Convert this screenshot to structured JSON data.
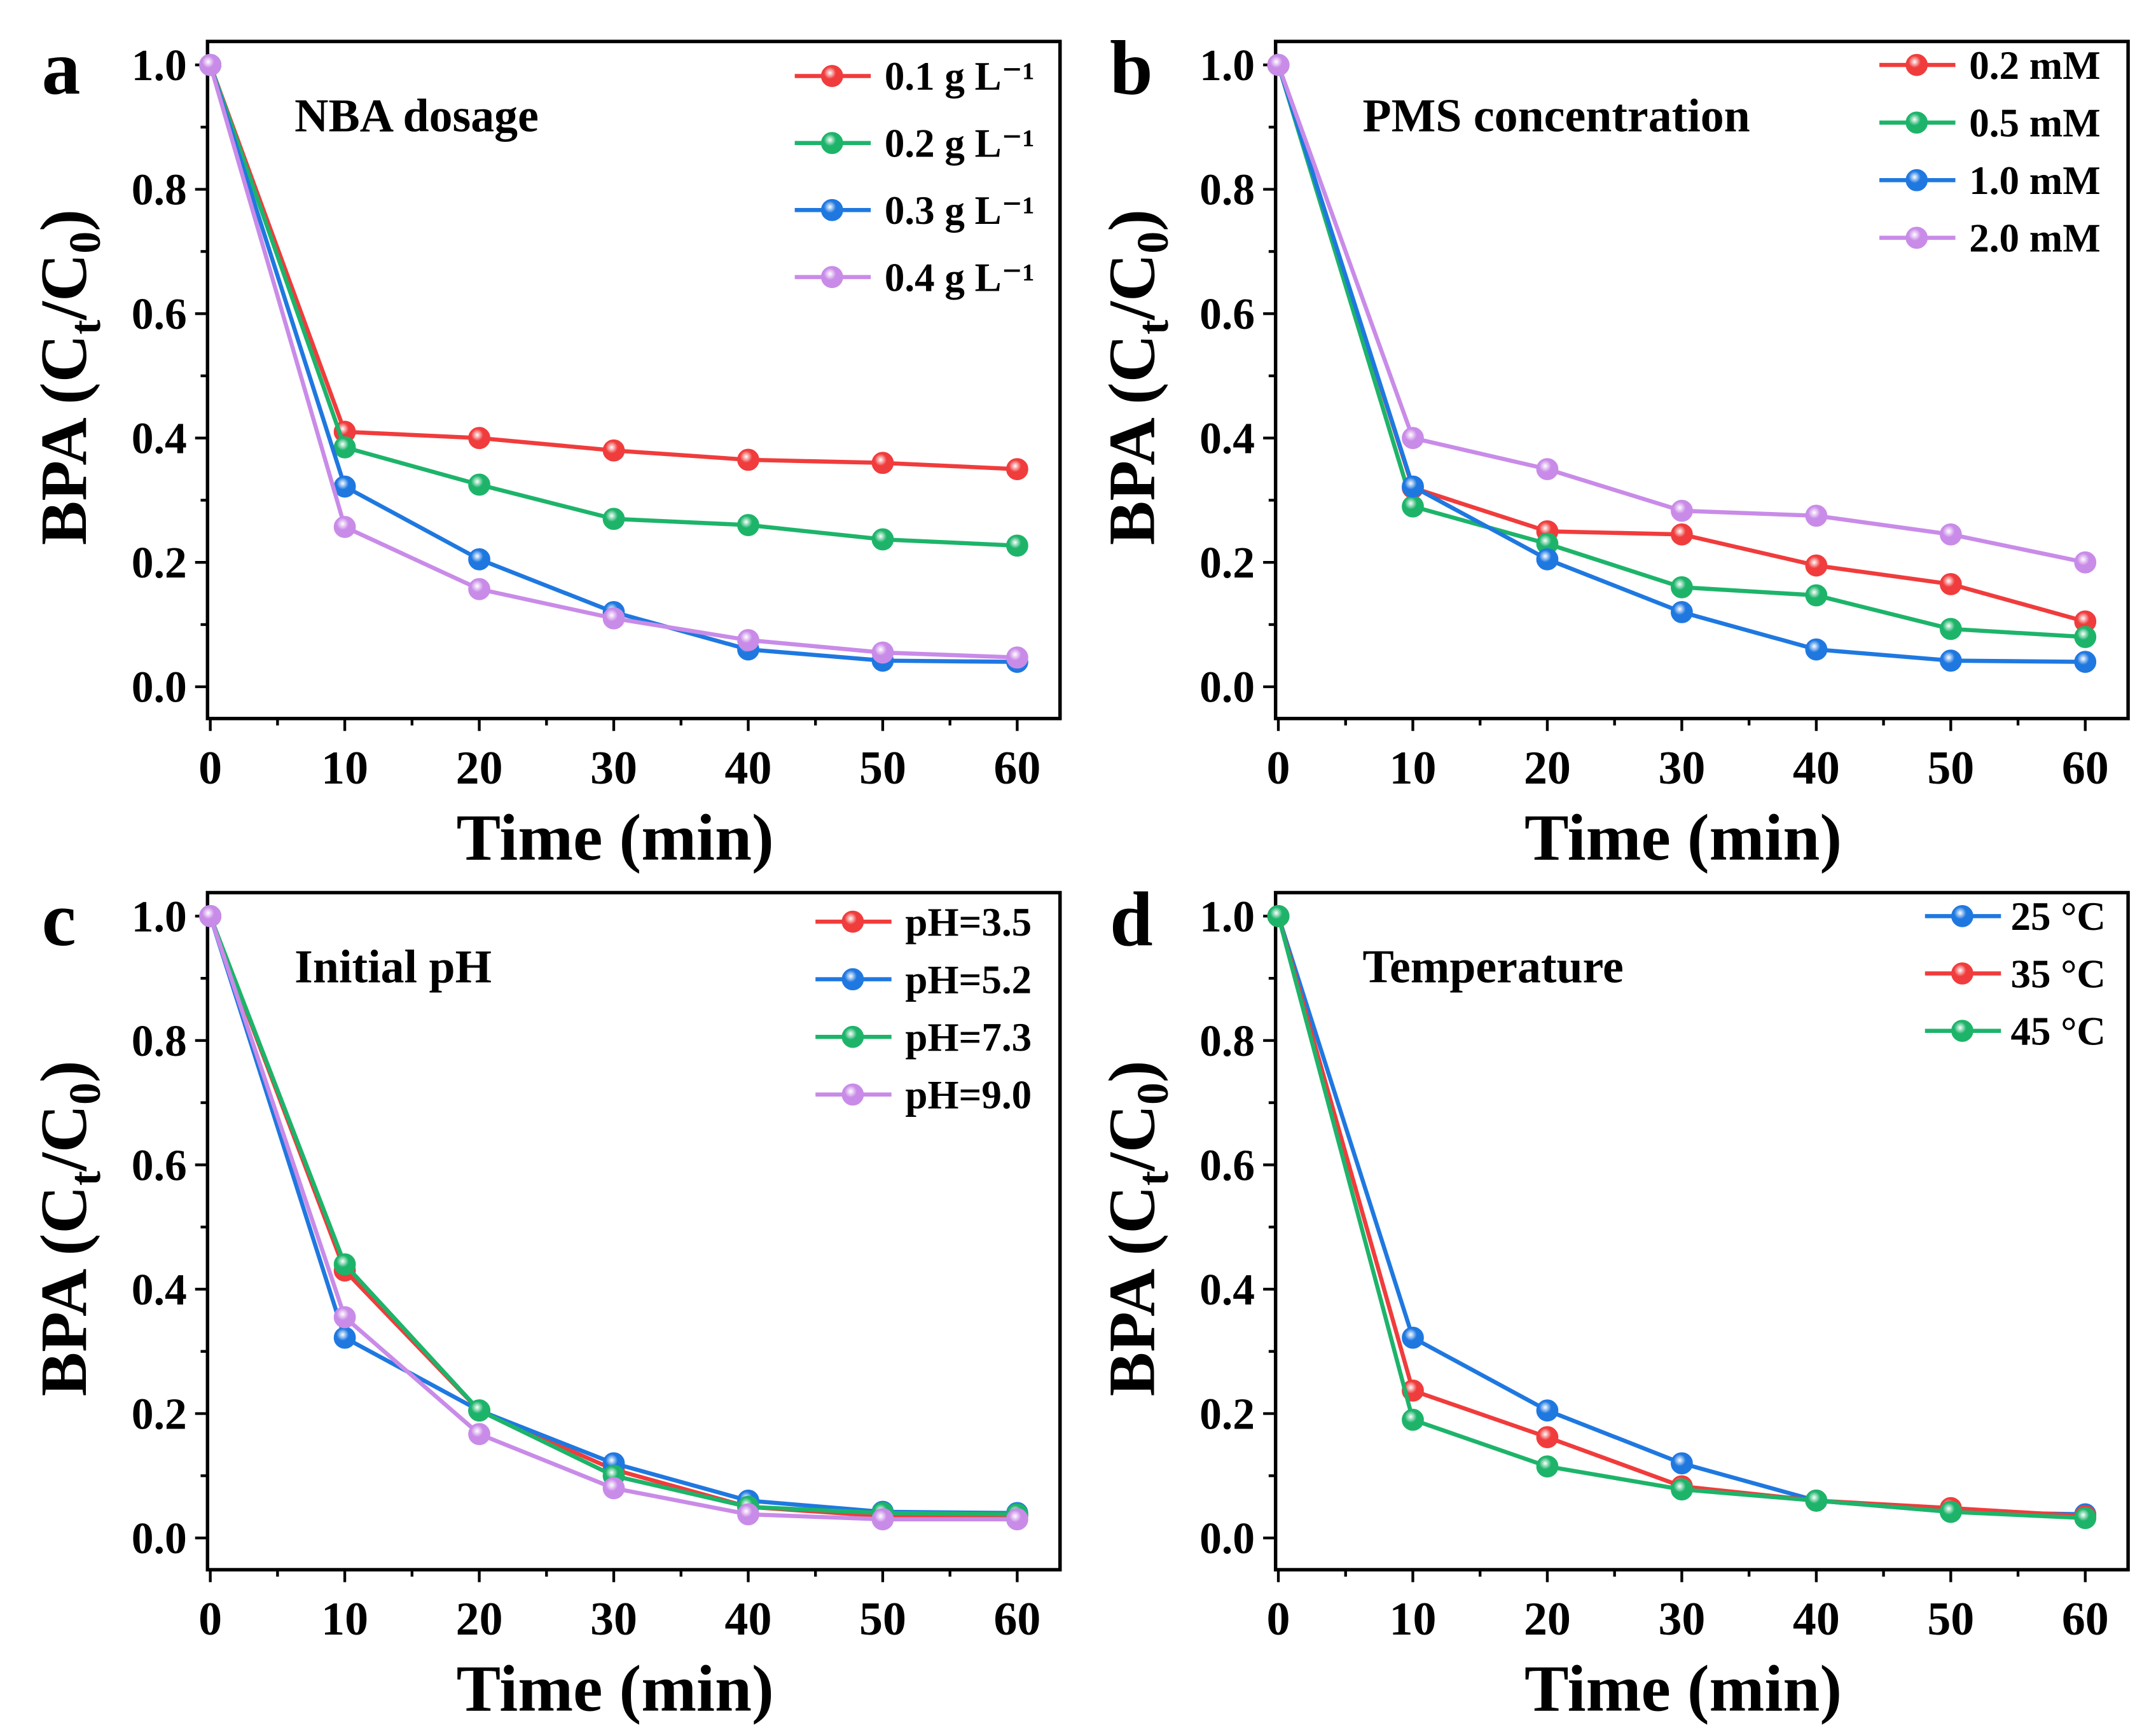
{
  "chart_data": [
    {
      "type": "line",
      "panel_letter": "a",
      "title": "NBA dosage",
      "xlabel": "Time (min)",
      "ylabel_parts": [
        "BPA (C",
        "t",
        "/C",
        "0",
        ")"
      ],
      "xlim": [
        0,
        62
      ],
      "ylim": [
        -0.05,
        1.05
      ],
      "xticks": [
        0,
        10,
        20,
        30,
        40,
        50,
        60
      ],
      "yticks": [
        "0.0",
        "0.2",
        "0.4",
        "0.6",
        "0.8",
        "1.0"
      ],
      "x": [
        0,
        10,
        20,
        30,
        40,
        50,
        60
      ],
      "legend_position": "top-right",
      "series": [
        {
          "name": "0.1 g L⁻¹",
          "color": "#f03c3c",
          "values": [
            1.0,
            0.41,
            0.4,
            0.38,
            0.365,
            0.36,
            0.35
          ]
        },
        {
          "name": "0.2 g L⁻¹",
          "color": "#1db46a",
          "values": [
            1.0,
            0.385,
            0.325,
            0.27,
            0.26,
            0.237,
            0.227
          ]
        },
        {
          "name": "0.3 g L⁻¹",
          "color": "#1f78e0",
          "values": [
            1.0,
            0.322,
            0.205,
            0.12,
            0.06,
            0.042,
            0.04
          ]
        },
        {
          "name": "0.4 g L⁻¹",
          "color": "#c98be8",
          "values": [
            1.0,
            0.257,
            0.157,
            0.11,
            0.075,
            0.055,
            0.047
          ]
        }
      ]
    },
    {
      "type": "line",
      "panel_letter": "b",
      "title": "PMS concentration",
      "xlabel": "Time (min)",
      "ylabel_parts": [
        "BPA (C",
        "t",
        "/C",
        "0",
        ")"
      ],
      "xlim": [
        0,
        62
      ],
      "ylim": [
        -0.05,
        1.05
      ],
      "xticks": [
        0,
        10,
        20,
        30,
        40,
        50,
        60
      ],
      "yticks": [
        "0.0",
        "0.2",
        "0.4",
        "0.6",
        "0.8",
        "1.0"
      ],
      "x": [
        0,
        10,
        20,
        30,
        40,
        50,
        60
      ],
      "legend_position": "top-right",
      "series": [
        {
          "name": "0.2 mM",
          "color": "#f03c3c",
          "values": [
            1.0,
            0.32,
            0.25,
            0.245,
            0.195,
            0.165,
            0.105
          ]
        },
        {
          "name": "0.5 mM",
          "color": "#1db46a",
          "values": [
            1.0,
            0.29,
            0.23,
            0.16,
            0.147,
            0.093,
            0.08
          ]
        },
        {
          "name": "1.0 mM",
          "color": "#1f78e0",
          "values": [
            1.0,
            0.322,
            0.205,
            0.12,
            0.06,
            0.042,
            0.04
          ]
        },
        {
          "name": "2.0 mM",
          "color": "#c98be8",
          "values": [
            1.0,
            0.4,
            0.35,
            0.283,
            0.275,
            0.245,
            0.2
          ]
        }
      ]
    },
    {
      "type": "line",
      "panel_letter": "c",
      "title": "Initial pH",
      "xlabel": "Time (min)",
      "ylabel_parts": [
        "BPA (C",
        "t",
        "/C",
        "0",
        ")"
      ],
      "xlim": [
        0,
        62
      ],
      "ylim": [
        -0.05,
        1.05
      ],
      "xticks": [
        0,
        10,
        20,
        30,
        40,
        50,
        60
      ],
      "yticks": [
        "0.0",
        "0.2",
        "0.4",
        "0.6",
        "0.8",
        "1.0"
      ],
      "x": [
        0,
        10,
        20,
        30,
        40,
        50,
        60
      ],
      "legend_position": "top-right",
      "series": [
        {
          "name": "pH=3.5",
          "color": "#f03c3c",
          "values": [
            1.0,
            0.43,
            0.205,
            0.11,
            0.05,
            0.035,
            0.035
          ]
        },
        {
          "name": "pH=5.2",
          "color": "#1f78e0",
          "values": [
            1.0,
            0.322,
            0.205,
            0.12,
            0.06,
            0.042,
            0.04
          ]
        },
        {
          "name": "pH=7.3",
          "color": "#1db46a",
          "values": [
            1.0,
            0.44,
            0.205,
            0.1,
            0.05,
            0.04,
            0.038
          ]
        },
        {
          "name": "pH=9.0",
          "color": "#c98be8",
          "values": [
            1.0,
            0.355,
            0.167,
            0.08,
            0.038,
            0.03,
            0.03
          ]
        }
      ]
    },
    {
      "type": "line",
      "panel_letter": "d",
      "title": "Temperature",
      "xlabel": "Time (min)",
      "ylabel_parts": [
        "BPA (C",
        "t",
        "/C",
        "0",
        ")"
      ],
      "xlim": [
        0,
        62
      ],
      "ylim": [
        -0.05,
        1.05
      ],
      "xticks": [
        0,
        10,
        20,
        30,
        40,
        50,
        60
      ],
      "yticks": [
        "0.0",
        "0.2",
        "0.4",
        "0.6",
        "0.8",
        "1.0"
      ],
      "x": [
        0,
        10,
        20,
        30,
        40,
        50,
        60
      ],
      "legend_position": "top-right",
      "series": [
        {
          "name": "25 °C",
          "color": "#1f78e0",
          "values": [
            1.0,
            0.322,
            0.205,
            0.12,
            0.06,
            0.042,
            0.038
          ]
        },
        {
          "name": "35 °C",
          "color": "#f03c3c",
          "values": [
            1.0,
            0.237,
            0.162,
            0.083,
            0.06,
            0.048,
            0.035
          ]
        },
        {
          "name": "45 °C",
          "color": "#1db46a",
          "values": [
            1.0,
            0.19,
            0.115,
            0.078,
            0.06,
            0.042,
            0.032
          ]
        }
      ]
    }
  ]
}
